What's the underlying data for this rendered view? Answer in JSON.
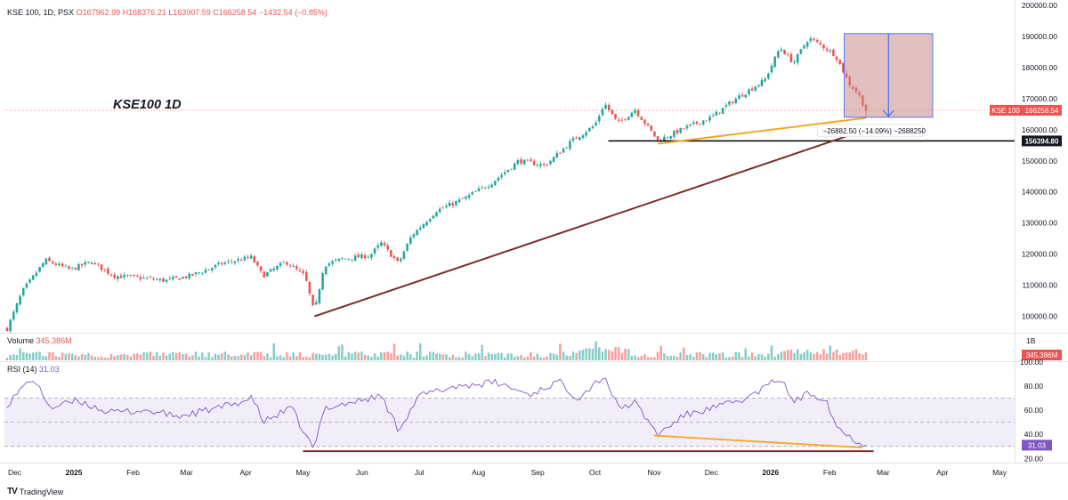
{
  "header": {
    "symbol": "KSE 100, 1D, PSX",
    "open": "O167962.99",
    "high": "H168376.21",
    "low": "L163907.59",
    "close": "C166258.54",
    "change": "−1432.54 (−0.85%)"
  },
  "annotation_title": "KSE100 1D",
  "volume_panel": {
    "label": "Volume",
    "value": "345.386M",
    "scale_label": "1B",
    "badge": "345.386M"
  },
  "rsi_panel": {
    "label": "RSI (14)",
    "value": "31.03",
    "badge": "31.03"
  },
  "price_badge": {
    "name": "KSE 100",
    "value": "166258.54"
  },
  "support_badge": "156394.80",
  "measure_label": "−26882.50 (−14.09%) −2688250",
  "brand": "TradingView",
  "colors": {
    "up": "#26a69a",
    "down": "#ef5350",
    "rsi_line": "#7e57c2",
    "trend_brown": "#7b2d2d",
    "trend_orange": "#f5a623",
    "measure_fill": "#c98b8b",
    "measure_arrow": "#2962ff"
  },
  "chart_data": {
    "type": "candlestick",
    "symbol": "KSE 100",
    "timeframe": "1D",
    "y_axis_ticks": [
      100000,
      110000,
      120000,
      130000,
      140000,
      150000,
      160000,
      170000,
      180000,
      190000,
      200000
    ],
    "y_axis_labels": [
      "100000.00",
      "110000.00",
      "120000.00",
      "130000.00",
      "140000.00",
      "150000.00",
      "160000.00",
      "170000.00",
      "180000.00",
      "190000.00",
      "200000.00"
    ],
    "ylim": [
      95000,
      200000
    ],
    "x_axis_labels": [
      "Dec",
      "2025",
      "Feb",
      "Mar",
      "Apr",
      "May",
      "Jun",
      "Jul",
      "Aug",
      "Sep",
      "Oct",
      "Nov",
      "Dec",
      "2026",
      "Feb",
      "Mar",
      "Apr",
      "May"
    ],
    "price_path": [
      [
        "2024-11-27",
        96000
      ],
      [
        "2024-12-05",
        108000
      ],
      [
        "2024-12-17",
        118000
      ],
      [
        "2024-12-30",
        115000
      ],
      [
        "2025-01-10",
        117500
      ],
      [
        "2025-01-22",
        113000
      ],
      [
        "2025-02-03",
        112500
      ],
      [
        "2025-02-18",
        111500
      ],
      [
        "2025-03-03",
        113000
      ],
      [
        "2025-03-20",
        117000
      ],
      [
        "2025-04-04",
        119000
      ],
      [
        "2025-04-10",
        113000
      ],
      [
        "2025-04-22",
        117500
      ],
      [
        "2025-05-02",
        113000
      ],
      [
        "2025-05-07",
        101000
      ],
      [
        "2025-05-12",
        116500
      ],
      [
        "2025-05-22",
        118500
      ],
      [
        "2025-06-05",
        119500
      ],
      [
        "2025-06-11",
        123500
      ],
      [
        "2025-06-20",
        117000
      ],
      [
        "2025-06-27",
        126000
      ],
      [
        "2025-07-10",
        134000
      ],
      [
        "2025-07-25",
        138000
      ],
      [
        "2025-08-08",
        143000
      ],
      [
        "2025-08-22",
        150000
      ],
      [
        "2025-09-05",
        148500
      ],
      [
        "2025-09-19",
        156500
      ],
      [
        "2025-10-01",
        161500
      ],
      [
        "2025-10-06",
        168500
      ],
      [
        "2025-10-13",
        162000
      ],
      [
        "2025-10-22",
        166500
      ],
      [
        "2025-11-03",
        156500
      ],
      [
        "2025-11-17",
        160500
      ],
      [
        "2025-12-01",
        164000
      ],
      [
        "2025-12-15",
        170500
      ],
      [
        "2025-12-29",
        176000
      ],
      [
        "2026-01-06",
        186500
      ],
      [
        "2026-01-13",
        181500
      ],
      [
        "2026-01-21",
        189500
      ],
      [
        "2026-01-28",
        187000
      ],
      [
        "2026-02-04",
        184000
      ],
      [
        "2026-02-11",
        175000
      ],
      [
        "2026-02-16",
        171500
      ],
      [
        "2026-02-20",
        166258.54
      ]
    ],
    "last_bar": {
      "open": 167962.99,
      "high": 168376.21,
      "low": 163907.59,
      "close": 166258.54,
      "change": -1432.54,
      "change_pct": -0.85
    },
    "support_level": 156394.8,
    "trendlines": [
      {
        "name": "rising-support",
        "from": [
          "2025-05-07",
          100000
        ],
        "to": [
          "2026-02-20",
          160000
        ]
      },
      {
        "name": "short-term-support",
        "from": [
          "2025-11-03",
          155500
        ],
        "to": [
          "2026-02-20",
          163800
        ]
      }
    ],
    "measurement": {
      "from_price": 190900,
      "to_price": 164000,
      "change": -26882.5,
      "change_pct": -14.09
    },
    "volume": {
      "last": "345.386M",
      "scale": "1B"
    },
    "rsi": {
      "period": 14,
      "last": 31.03,
      "bands": [
        30,
        70
      ],
      "ticks": [
        20,
        40,
        60,
        80,
        100
      ],
      "ylim": [
        18,
        100
      ],
      "path": [
        [
          "2024-11-27",
          65
        ],
        [
          "2024-12-10",
          87
        ],
        [
          "2024-12-20",
          62
        ],
        [
          "2025-01-03",
          68
        ],
        [
          "2025-01-20",
          58
        ],
        [
          "2025-02-07",
          60
        ],
        [
          "2025-02-25",
          55
        ],
        [
          "2025-03-18",
          62
        ],
        [
          "2025-04-05",
          70
        ],
        [
          "2025-04-10",
          50
        ],
        [
          "2025-04-25",
          62
        ],
        [
          "2025-05-02",
          40
        ],
        [
          "2025-05-07",
          27
        ],
        [
          "2025-05-12",
          62
        ],
        [
          "2025-05-25",
          66
        ],
        [
          "2025-06-11",
          72
        ],
        [
          "2025-06-20",
          44
        ],
        [
          "2025-07-01",
          72
        ],
        [
          "2025-07-20",
          80
        ],
        [
          "2025-08-10",
          83
        ],
        [
          "2025-08-28",
          73
        ],
        [
          "2025-09-12",
          84
        ],
        [
          "2025-09-22",
          70
        ],
        [
          "2025-10-06",
          89
        ],
        [
          "2025-10-13",
          62
        ],
        [
          "2025-10-22",
          66
        ],
        [
          "2025-11-03",
          40
        ],
        [
          "2025-11-17",
          56
        ],
        [
          "2025-12-05",
          63
        ],
        [
          "2025-12-20",
          70
        ],
        [
          "2026-01-06",
          87
        ],
        [
          "2026-01-13",
          67
        ],
        [
          "2026-01-21",
          74
        ],
        [
          "2026-01-30",
          70
        ],
        [
          "2026-02-04",
          48
        ],
        [
          "2026-02-11",
          38
        ],
        [
          "2026-02-20",
          31.03
        ]
      ]
    }
  }
}
